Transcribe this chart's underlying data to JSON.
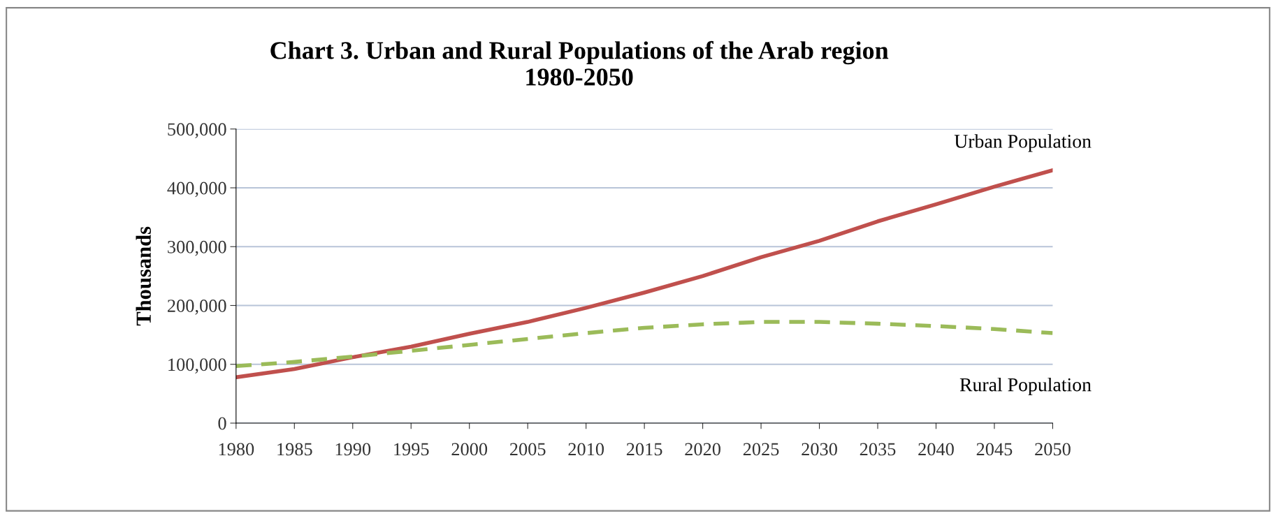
{
  "chart_data": {
    "type": "line",
    "title": "Chart 3. Urban and Rural Populations of the Arab region\n1980-2050",
    "ylabel": "Thousands",
    "categories": [
      "1980",
      "1985",
      "1990",
      "1995",
      "2000",
      "2005",
      "2010",
      "2015",
      "2020",
      "2025",
      "2030",
      "2035",
      "2040",
      "2045",
      "2050"
    ],
    "series": [
      {
        "name": "Urban Population",
        "color": "#c0504d",
        "line_style": "solid",
        "values": [
          78000,
          92000,
          112000,
          130000,
          152000,
          172000,
          196000,
          222000,
          250000,
          282000,
          310000,
          343000,
          372000,
          402000,
          430000
        ]
      },
      {
        "name": "Rural Population",
        "color": "#9bbb59",
        "line_style": "dashed",
        "values": [
          97000,
          104000,
          113000,
          123000,
          133000,
          143000,
          153000,
          162000,
          168000,
          172000,
          172000,
          169000,
          165000,
          160000,
          153000
        ]
      }
    ],
    "ylim": [
      0,
      500000
    ],
    "yticks": [
      {
        "value": 0,
        "label": "0"
      },
      {
        "value": 100000,
        "label": "100,000"
      },
      {
        "value": 200000,
        "label": "200,000"
      },
      {
        "value": 300000,
        "label": "300,000"
      },
      {
        "value": 400000,
        "label": "400,000"
      },
      {
        "value": 500000,
        "label": "500,000"
      }
    ],
    "grid": "y",
    "legend": false
  }
}
